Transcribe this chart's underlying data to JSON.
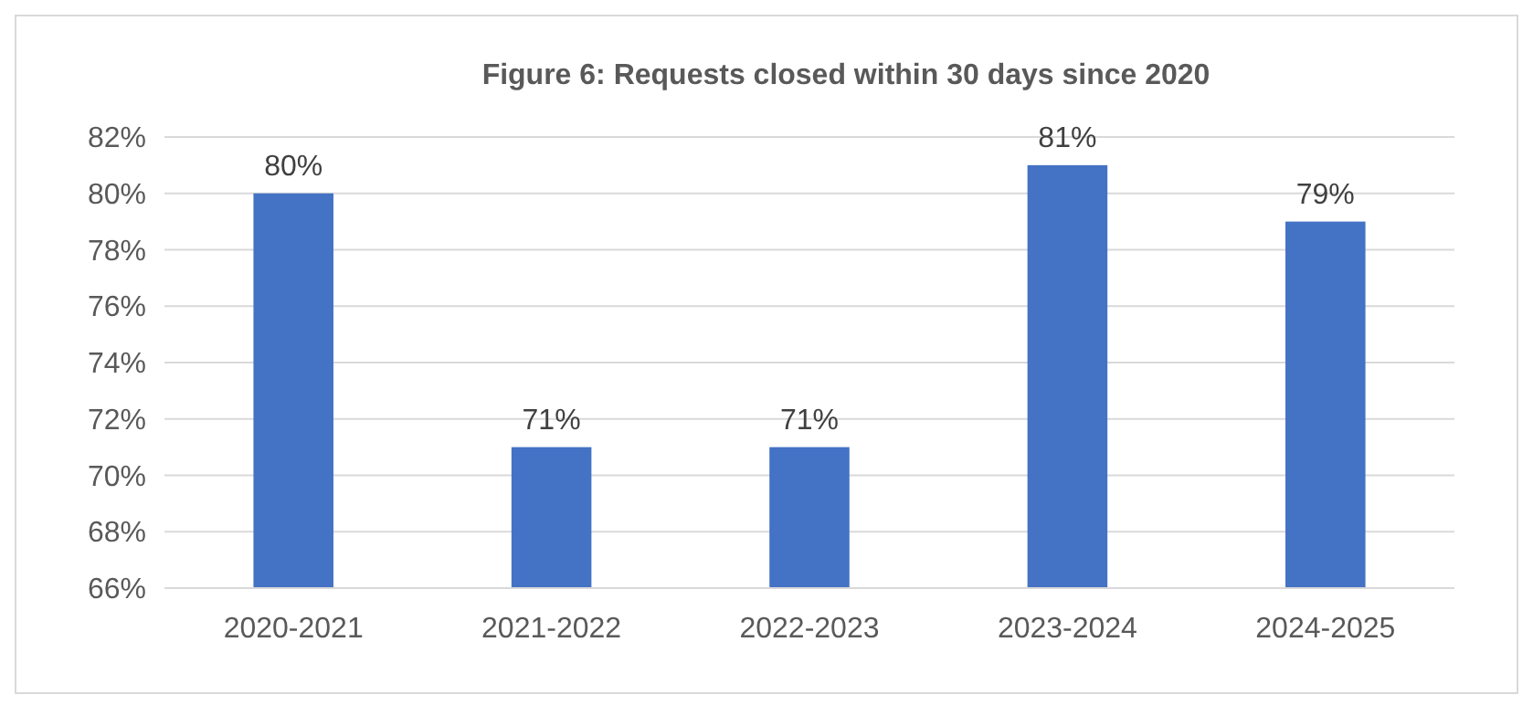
{
  "chart_data": {
    "type": "bar",
    "title": "Figure 6: Requests closed within 30 days since 2020",
    "categories": [
      "2020-2021",
      "2021-2022",
      "2022-2023",
      "2023-2024",
      "2024-2025"
    ],
    "values": [
      80,
      71,
      71,
      81,
      79
    ],
    "value_labels": [
      "80%",
      "71%",
      "71%",
      "81%",
      "79%"
    ],
    "color": "#4472c4",
    "ylim": [
      66,
      82
    ],
    "yticks": [
      {
        "value": 66,
        "label": "66%"
      },
      {
        "value": 68,
        "label": "68%"
      },
      {
        "value": 70,
        "label": "70%"
      },
      {
        "value": 72,
        "label": "72%"
      },
      {
        "value": 74,
        "label": "74%"
      },
      {
        "value": 76,
        "label": "76%"
      },
      {
        "value": 78,
        "label": "78%"
      },
      {
        "value": 80,
        "label": "80%"
      },
      {
        "value": 82,
        "label": "82%"
      }
    ],
    "grid": "y"
  }
}
